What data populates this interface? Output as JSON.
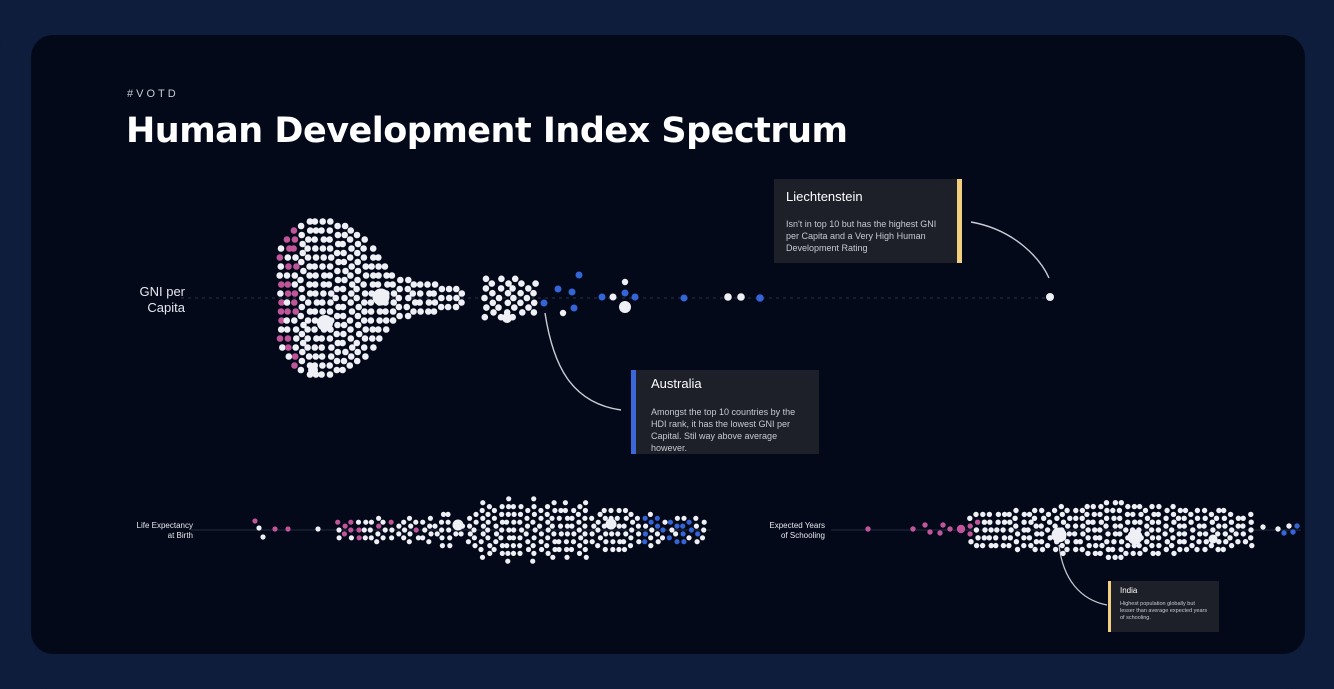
{
  "header": {
    "tag": "#VOTD",
    "title": "Human Development Index Spectrum"
  },
  "colors": {
    "default_dot": "#eef0f6",
    "low_dot": "#c0559a",
    "top10_dot": "#3464d6",
    "highlight_gold": "#f2cf7e",
    "highlight_blue": "#3a68d8"
  },
  "chart_data": [
    {
      "type": "beeswarm",
      "row_label_line1": "GNI per",
      "row_label_line2": "Capita",
      "annotations": [
        {
          "country": "Liechtenstein",
          "text": "Isn't in top 10 but has the highest GNI per Capita and a Very High Human Development Rating"
        },
        {
          "country": "Australia",
          "text": "Amongst the top 10 countries by the HDI rank, it has the lowest GNI per Capital. Stil way above average however."
        }
      ]
    },
    {
      "type": "beeswarm",
      "row_label_line1": "Life Expectancy",
      "row_label_line2": "at Birth",
      "annotations": []
    },
    {
      "type": "beeswarm",
      "row_label_line1": "Expected Years",
      "row_label_line2": "of Schooling",
      "annotations": [
        {
          "country": "India",
          "text": "Highest population globally but lesser than average expected years of schooling."
        }
      ]
    }
  ]
}
